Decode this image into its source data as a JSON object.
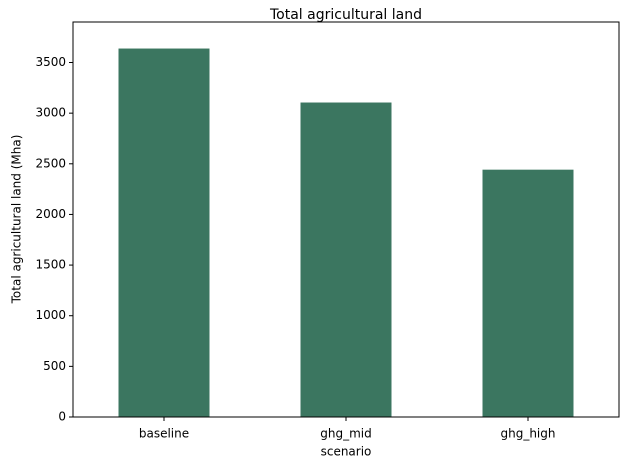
{
  "chart_data": {
    "type": "bar",
    "title": "Total agricultural land",
    "xlabel": "scenario",
    "ylabel": "Total agricultural land (Mha)",
    "categories": [
      "baseline",
      "ghg_mid",
      "ghg_high"
    ],
    "values": [
      3638,
      3105,
      2442
    ],
    "color": "#3b7660",
    "ylim": [
      0,
      3900
    ],
    "yticks": [
      0,
      500,
      1000,
      1500,
      2000,
      2500,
      3000,
      3500
    ]
  }
}
